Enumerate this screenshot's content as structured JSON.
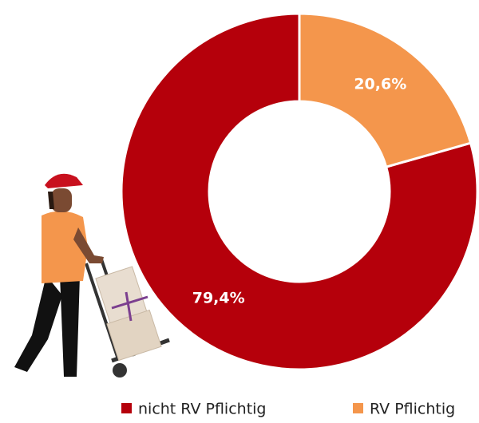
{
  "chart_data": {
    "type": "donut",
    "categories": [
      "nicht RV Pflichtig",
      "RV Pflichtig"
    ],
    "values": [
      79.4,
      20.6
    ],
    "value_labels": [
      "79,4%",
      "20,6%"
    ],
    "colors": [
      "#b5000b",
      "#f4964c"
    ],
    "legend": "bottom"
  }
}
